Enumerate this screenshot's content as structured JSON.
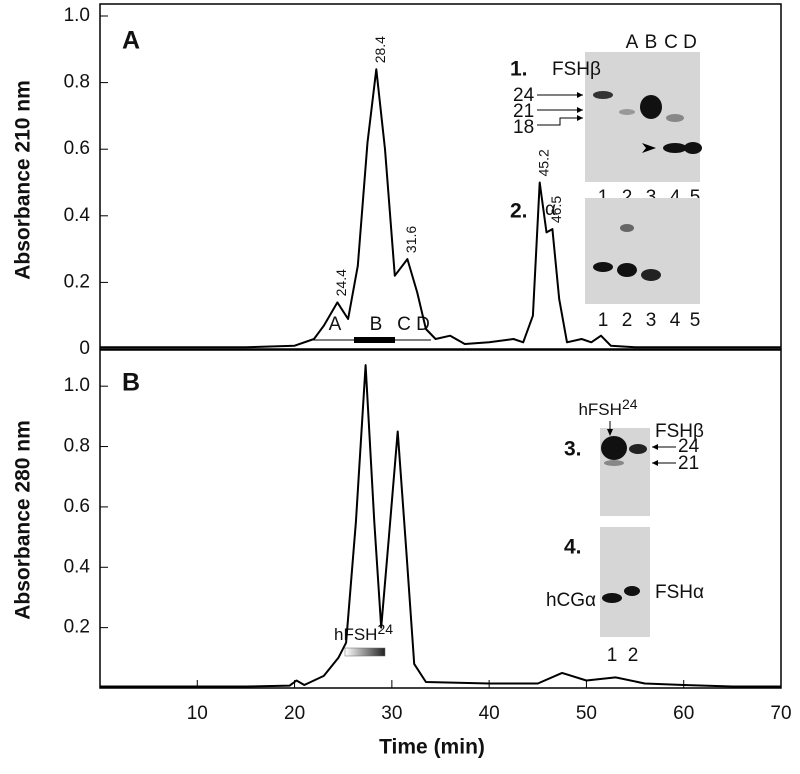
{
  "chart_data": [
    {
      "type": "line",
      "panel_label": "A",
      "ylabel": "Absorbance 210 nm",
      "color": "#000000",
      "xlim": [
        0,
        70
      ],
      "ylim": [
        0,
        1.0
      ],
      "yticks": [
        0,
        0.2,
        0.4,
        0.6,
        0.8,
        {
          "value": 1,
          "label": "1.0"
        }
      ],
      "x": [
        0,
        5,
        10,
        15,
        20,
        22,
        23,
        24.4,
        25.5,
        26.5,
        27.5,
        28.4,
        29.3,
        30.3,
        31.6,
        32.6,
        33.5,
        34.5,
        36,
        37.5,
        40,
        42.5,
        43.5,
        44.5,
        45.2,
        45.9,
        46.5,
        47.2,
        48,
        49.5,
        50.5,
        51.5,
        52.5,
        55,
        60,
        65,
        70
      ],
      "values": [
        0.005,
        0.005,
        0.005,
        0.005,
        0.01,
        0.03,
        0.07,
        0.14,
        0.09,
        0.25,
        0.62,
        0.84,
        0.6,
        0.22,
        0.27,
        0.17,
        0.06,
        0.03,
        0.04,
        0.015,
        0.02,
        0.03,
        0.02,
        0.1,
        0.5,
        0.35,
        0.36,
        0.15,
        0.02,
        0.03,
        0.02,
        0.04,
        0.01,
        0.005,
        0.005,
        0.005,
        0.005
      ],
      "peaks": [
        {
          "x": 24.4,
          "y": 0.14
        },
        {
          "x": 28.4,
          "y": 0.84
        },
        {
          "x": 31.6,
          "y": 0.27
        },
        {
          "x": 45.2,
          "y": 0.5
        },
        {
          "x": 46.5,
          "y": 0.36
        }
      ],
      "fractions": [
        "A",
        "B",
        "C",
        "D"
      ],
      "insets": [
        {
          "number": "1.",
          "subunit": "FSHβ",
          "lane_letters": [
            "A",
            "B",
            "C",
            "D"
          ],
          "sizes": [
            "24",
            "21",
            "18"
          ],
          "lanes": [
            "1",
            "2",
            "3",
            "4",
            "5"
          ]
        },
        {
          "number": "2.",
          "subunit": "α",
          "lanes": [
            "1",
            "2",
            "3",
            "4",
            "5"
          ]
        }
      ]
    },
    {
      "type": "line",
      "panel_label": "B",
      "ylabel": "Absorbance 280 nm",
      "xlabel": "Time (min)",
      "color": "#000000",
      "xlim": [
        0,
        70
      ],
      "ylim": [
        0,
        1.1
      ],
      "xticks": [
        10,
        20,
        30,
        40,
        50,
        60,
        70
      ],
      "yticks": [
        0.2,
        0.4,
        0.6,
        0.8,
        {
          "value": 1,
          "label": "1.0"
        }
      ],
      "x": [
        0,
        5,
        10,
        15,
        19.5,
        20.2,
        21,
        23,
        24.5,
        25.3,
        26.3,
        27.3,
        28.2,
        28.9,
        29.7,
        30.6,
        31.5,
        32.3,
        33.5,
        40,
        45,
        47.5,
        50,
        53,
        56,
        60,
        65,
        70
      ],
      "values": [
        0.005,
        0.005,
        0.005,
        0.005,
        0.008,
        0.025,
        0.01,
        0.04,
        0.1,
        0.15,
        0.55,
        1.07,
        0.55,
        0.2,
        0.5,
        0.85,
        0.45,
        0.08,
        0.02,
        0.015,
        0.015,
        0.05,
        0.025,
        0.035,
        0.015,
        0.01,
        0.005,
        0.005
      ],
      "band_label": {
        "base": "hFSH",
        "sup": "24"
      },
      "insets": [
        {
          "number": "3.",
          "top_label": {
            "base": "hFSH",
            "sup": "24"
          },
          "subunit": "FSHβ",
          "sizes": [
            "24",
            "21"
          ]
        },
        {
          "number": "4.",
          "left_label": "hCGα",
          "right_label": "FSHα",
          "lanes": [
            "1",
            "2"
          ]
        }
      ]
    }
  ]
}
